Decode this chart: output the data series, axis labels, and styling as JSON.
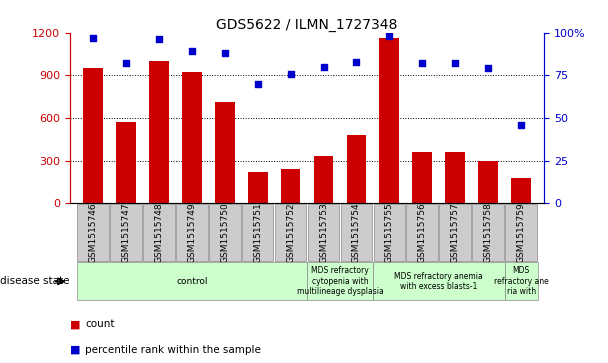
{
  "title": "GDS5622 / ILMN_1727348",
  "samples": [
    "GSM1515746",
    "GSM1515747",
    "GSM1515748",
    "GSM1515749",
    "GSM1515750",
    "GSM1515751",
    "GSM1515752",
    "GSM1515753",
    "GSM1515754",
    "GSM1515755",
    "GSM1515756",
    "GSM1515757",
    "GSM1515758",
    "GSM1515759"
  ],
  "counts": [
    950,
    575,
    1000,
    920,
    710,
    220,
    240,
    330,
    480,
    1160,
    360,
    360,
    300,
    175
  ],
  "percentiles": [
    97,
    82,
    96,
    89,
    88,
    70,
    76,
    80,
    83,
    98,
    82,
    82,
    79,
    46
  ],
  "bar_color": "#cc0000",
  "dot_color": "#0000cc",
  "ylim_left": [
    0,
    1200
  ],
  "ylim_right": [
    0,
    100
  ],
  "yticks_left": [
    0,
    300,
    600,
    900,
    1200
  ],
  "yticks_right": [
    0,
    25,
    50,
    75,
    100
  ],
  "ytick_labels_right": [
    "0",
    "25",
    "50",
    "75",
    "100%"
  ],
  "disease_groups": [
    {
      "label": "control",
      "start": 0,
      "end": 7,
      "color": "#ccffcc"
    },
    {
      "label": "MDS refractory\ncytopenia with\nmultilineage dysplasia",
      "start": 7,
      "end": 9,
      "color": "#ccffcc"
    },
    {
      "label": "MDS refractory anemia\nwith excess blasts-1",
      "start": 9,
      "end": 13,
      "color": "#ccffcc"
    },
    {
      "label": "MDS\nrefractory ane\nria with",
      "start": 13,
      "end": 14,
      "color": "#ccffcc"
    }
  ],
  "legend_count_label": "count",
  "legend_pct_label": "percentile rank within the sample",
  "disease_state_label": "disease state",
  "tick_color_left": "#cc0000",
  "tick_color_right": "#0000cc",
  "xtick_bg_color": "#cccccc",
  "disease_row_color": "#ccffcc"
}
